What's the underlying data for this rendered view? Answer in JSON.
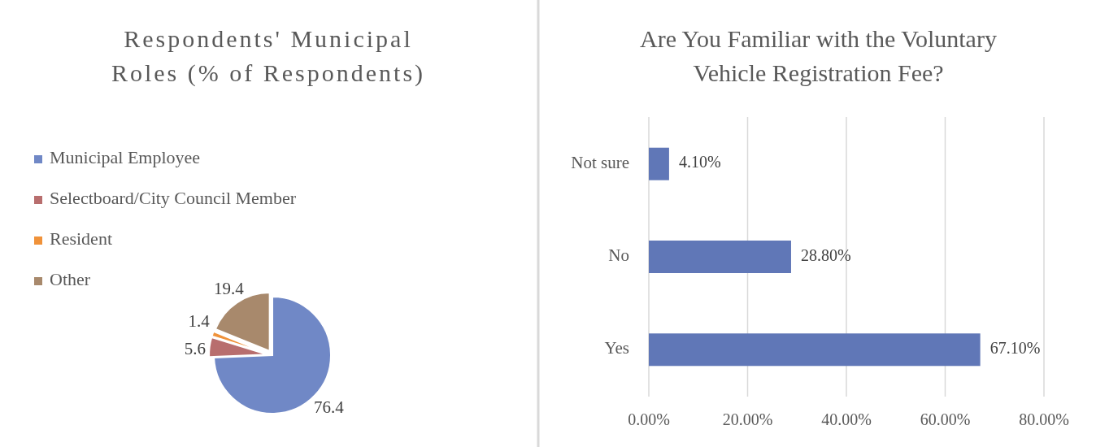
{
  "chart_data": [
    {
      "type": "pie",
      "title": "Respondents' Municipal Roles (% of Respondents)",
      "categories": [
        "Municipal Employee",
        "Selectboard/City Council Member",
        "Resident",
        "Other"
      ],
      "values": [
        76.4,
        5.6,
        1.4,
        19.4
      ],
      "colors": [
        "#7088c6",
        "#b86e6e",
        "#f0923a",
        "#a8896c"
      ],
      "data_labels": true,
      "legend": "left"
    },
    {
      "type": "bar",
      "orientation": "horizontal",
      "title": "Are You Familiar with the Voluntary Vehicle Registration Fee?",
      "categories": [
        "Not sure",
        "No",
        "Yes"
      ],
      "values": [
        4.1,
        28.8,
        67.1
      ],
      "color": "#6077b7",
      "value_labels": [
        "4.10%",
        "28.80%",
        "67.10%"
      ],
      "xlim": [
        0,
        80
      ],
      "xticks": [
        {
          "value": 0,
          "label": "0.00%"
        },
        {
          "value": 20,
          "label": "20.00%"
        },
        {
          "value": 40,
          "label": "40.00%"
        },
        {
          "value": 60,
          "label": "60.00%"
        },
        {
          "value": 80,
          "label": "80.00%"
        }
      ],
      "grid": "x"
    }
  ]
}
